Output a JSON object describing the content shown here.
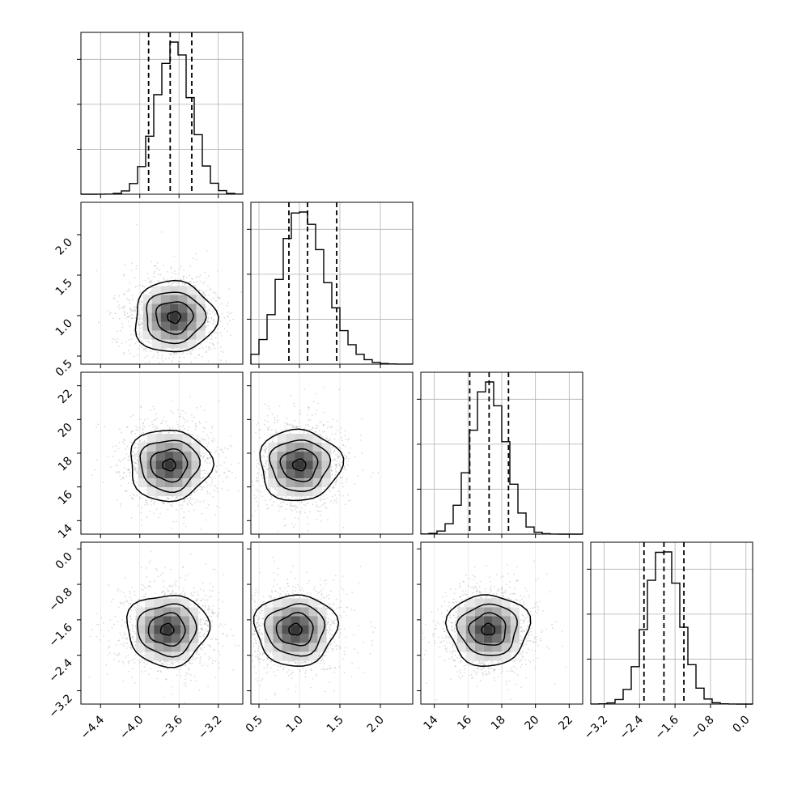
{
  "chart_data": {
    "type": "corner",
    "parameters": [
      {
        "index": 0,
        "range": [
          -4.6,
          -2.95
        ],
        "ticks": [
          "-4.4",
          "-4.0",
          "-3.6",
          "-3.2"
        ],
        "tick_values": [
          -4.4,
          -4.0,
          -3.6,
          -3.2
        ],
        "quantiles": [
          -3.91,
          -3.69,
          -3.47
        ],
        "hist_peak": -3.65,
        "hist_sd": 0.18
      },
      {
        "index": 1,
        "range": [
          0.4,
          2.4
        ],
        "ticks": [
          "0.5",
          "1.0",
          "1.5",
          "2.0"
        ],
        "tick_values": [
          0.5,
          1.0,
          1.5,
          2.0
        ],
        "quantiles": [
          0.87,
          1.1,
          1.46
        ],
        "hist_peak": 1.0,
        "hist_sd": 0.28
      },
      {
        "index": 2,
        "range": [
          13.2,
          22.8
        ],
        "ticks": [
          "14",
          "16",
          "18",
          "20",
          "22"
        ],
        "tick_values": [
          14,
          16,
          18,
          20,
          22
        ],
        "quantiles": [
          16.1,
          17.25,
          18.4
        ],
        "hist_peak": 17.2,
        "hist_sd": 1.0
      },
      {
        "index": 3,
        "range": [
          -3.5,
          0.15
        ],
        "ticks": [
          "0.0",
          "-0.8",
          "-1.6",
          "-2.4",
          "-3.2"
        ],
        "tick_values": [
          0.0,
          -0.8,
          -1.6,
          -2.4,
          -3.2
        ],
        "quantiles": [
          -2.3,
          -1.85,
          -1.4
        ],
        "hist_peak": -1.85,
        "hist_sd": 0.38
      }
    ],
    "density_peaks": {
      "1-0": [
        -3.65,
        0.98
      ],
      "2-0": [
        -3.7,
        17.3
      ],
      "2-1": [
        1.0,
        17.3
      ],
      "3-0": [
        -3.72,
        -1.82
      ],
      "3-1": [
        0.95,
        -1.82
      ],
      "3-2": [
        17.2,
        -1.82
      ]
    },
    "grid": true,
    "contour_levels": 4
  }
}
